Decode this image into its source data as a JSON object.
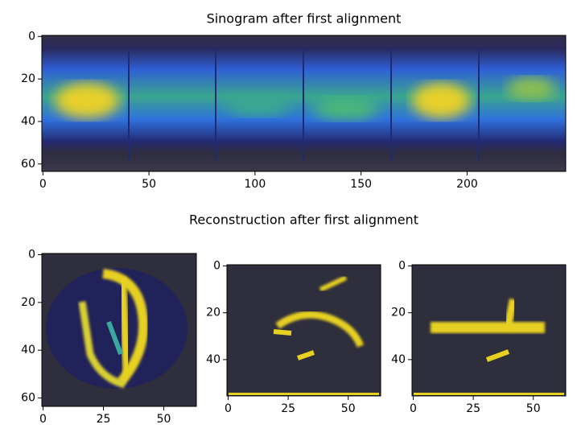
{
  "chart_data": [
    {
      "type": "image",
      "title": "Sinogram after first alignment",
      "xlim": [
        -0.5,
        246.5
      ],
      "ylim": [
        63.5,
        -0.5
      ],
      "xticks": [
        0,
        50,
        100,
        150,
        200
      ],
      "yticks": [
        0,
        20,
        40,
        60
      ]
    },
    {
      "type": "image",
      "xlim": [
        -0.5,
        63.5
      ],
      "ylim": [
        63.5,
        -0.5
      ],
      "xticks": [
        0,
        25,
        50
      ],
      "yticks": [
        0,
        20,
        40,
        60
      ]
    },
    {
      "type": "image",
      "title": "Reconstruction after first alignment",
      "xlim": [
        -0.5,
        63.5
      ],
      "ylim": [
        55.5,
        -0.5
      ],
      "xticks": [
        0,
        25,
        50
      ],
      "yticks": [
        0,
        20,
        40
      ]
    },
    {
      "type": "image",
      "xlim": [
        -0.5,
        63.5
      ],
      "ylim": [
        55.5,
        -0.5
      ],
      "xticks": [
        0,
        25,
        50
      ],
      "yticks": [
        0,
        20,
        40
      ]
    }
  ]
}
